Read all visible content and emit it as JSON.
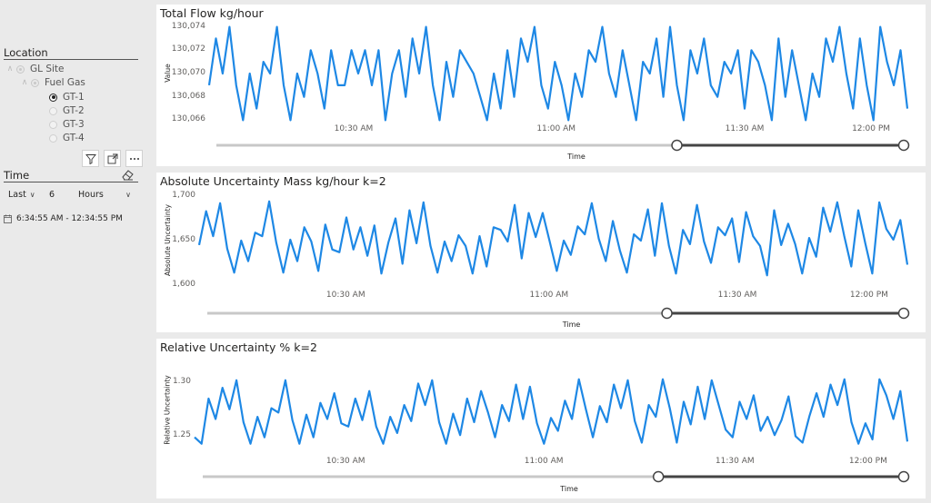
{
  "location_slicer": {
    "title": "Location",
    "items": [
      {
        "label": "GL Site",
        "state": "dim"
      },
      {
        "label": "Fuel Gas",
        "state": "dim"
      },
      {
        "label": "GT-1",
        "state": "checked"
      },
      {
        "label": "GT-2",
        "state": "empty"
      },
      {
        "label": "GT-3",
        "state": "empty"
      },
      {
        "label": "GT-4",
        "state": "empty"
      }
    ]
  },
  "time_slicer": {
    "title": "Time",
    "anchor": "Last",
    "amount": "6",
    "unit": "Hours",
    "range": "6:34:55 AM - 12:34:55 PM"
  },
  "icons": {
    "filter": "filter-icon",
    "focus": "focus-mode-icon",
    "more": "more-options-icon",
    "eraser": "eraser-icon",
    "calendar": "calendar-icon",
    "line_color": "#1e88e5"
  },
  "chart_data": [
    {
      "type": "line",
      "title": "Total Flow kg/hour",
      "ylabel": "Value",
      "xlabel": "Time",
      "yticks": [
        "130,074",
        "130,072",
        "130,070",
        "130,068",
        "130,066"
      ],
      "ylim": [
        130065.8,
        130074.2
      ],
      "xticks": [
        "10:30 AM",
        "11:00 AM",
        "11:30 AM",
        "12:00 PM"
      ],
      "y": [
        130069,
        130073,
        130070,
        130074,
        130069,
        130066,
        130070,
        130067,
        130071,
        130070,
        130074,
        130069,
        130066,
        130070,
        130068,
        130072,
        130070,
        130067,
        130072,
        130069,
        130069,
        130072,
        130070,
        130072,
        130069,
        130072,
        130066,
        130070,
        130072,
        130068,
        130073,
        130070,
        130074,
        130069,
        130066,
        130071,
        130068,
        130072,
        130071,
        130070,
        130068,
        130066,
        130070,
        130067,
        130072,
        130068,
        130073,
        130071,
        130074,
        130069,
        130067,
        130071,
        130069,
        130066,
        130070,
        130068,
        130072,
        130071,
        130074,
        130070,
        130068,
        130072,
        130069,
        130066,
        130071,
        130070,
        130073,
        130068,
        130074,
        130069,
        130066,
        130072,
        130070,
        130073,
        130069,
        130068,
        130071,
        130070,
        130072,
        130067,
        130072,
        130071,
        130069,
        130066,
        130073,
        130068,
        130072,
        130069,
        130066,
        130070,
        130068,
        130073,
        130071,
        130074,
        130070,
        130067,
        130073,
        130069,
        130066,
        130074,
        130071,
        130069,
        130072,
        130067
      ],
      "slider": {
        "start": 0.67,
        "end": 1.0
      }
    },
    {
      "type": "line",
      "title": "Absolute Uncertainty Mass kg/hour k=2",
      "ylabel": "Absolute Uncertainty",
      "xlabel": "Time",
      "yticks": [
        "1,700",
        "1,650",
        "1,600"
      ],
      "ylim": [
        1596,
        1704
      ],
      "xticks": [
        "10:30 AM",
        "11:00 AM",
        "11:30 AM",
        "12:00 PM"
      ],
      "y": [
        1645,
        1683,
        1655,
        1692,
        1641,
        1614,
        1650,
        1627,
        1659,
        1655,
        1694,
        1648,
        1614,
        1651,
        1627,
        1665,
        1649,
        1616,
        1668,
        1640,
        1637,
        1676,
        1640,
        1665,
        1633,
        1667,
        1613,
        1648,
        1675,
        1624,
        1684,
        1647,
        1693,
        1644,
        1614,
        1649,
        1627,
        1656,
        1644,
        1613,
        1655,
        1621,
        1665,
        1662,
        1649,
        1690,
        1630,
        1681,
        1654,
        1681,
        1649,
        1616,
        1650,
        1634,
        1666,
        1657,
        1692,
        1652,
        1627,
        1672,
        1639,
        1614,
        1657,
        1650,
        1685,
        1633,
        1692,
        1644,
        1613,
        1662,
        1646,
        1690,
        1649,
        1625,
        1665,
        1656,
        1675,
        1626,
        1682,
        1655,
        1644,
        1611,
        1684,
        1645,
        1669,
        1646,
        1613,
        1653,
        1632,
        1687,
        1660,
        1693,
        1655,
        1621,
        1684,
        1647,
        1613,
        1693,
        1663,
        1651,
        1673,
        1623
      ],
      "slider": {
        "start": 0.66,
        "end": 1.0
      }
    },
    {
      "type": "line",
      "title": "Relative Uncertainty % k=2",
      "ylabel": "Relative Uncertainty",
      "xlabel": "Time",
      "yticks": [
        "1.30",
        "1.25"
      ],
      "ylim": [
        1.236,
        1.312
      ],
      "xticks": [
        "10:30 AM",
        "11:00 AM",
        "11:30 AM",
        "12:00 PM"
      ],
      "y": [
        1.249,
        1.243,
        1.285,
        1.266,
        1.295,
        1.275,
        1.302,
        1.263,
        1.243,
        1.268,
        1.249,
        1.276,
        1.272,
        1.302,
        1.265,
        1.243,
        1.27,
        1.249,
        1.281,
        1.266,
        1.29,
        1.262,
        1.259,
        1.285,
        1.265,
        1.292,
        1.259,
        1.243,
        1.268,
        1.253,
        1.279,
        1.264,
        1.299,
        1.279,
        1.302,
        1.263,
        1.243,
        1.271,
        1.251,
        1.285,
        1.263,
        1.292,
        1.272,
        1.249,
        1.279,
        1.264,
        1.298,
        1.266,
        1.296,
        1.262,
        1.243,
        1.267,
        1.255,
        1.283,
        1.266,
        1.303,
        1.275,
        1.249,
        1.278,
        1.263,
        1.298,
        1.276,
        1.302,
        1.264,
        1.244,
        1.279,
        1.268,
        1.303,
        1.276,
        1.244,
        1.282,
        1.261,
        1.296,
        1.266,
        1.302,
        1.279,
        1.256,
        1.249,
        1.282,
        1.266,
        1.288,
        1.255,
        1.268,
        1.251,
        1.265,
        1.287,
        1.25,
        1.244,
        1.269,
        1.29,
        1.268,
        1.298,
        1.279,
        1.303,
        1.263,
        1.243,
        1.262,
        1.247,
        1.303,
        1.288,
        1.266,
        1.292,
        1.245
      ],
      "slider": {
        "start": 0.65,
        "end": 1.0
      }
    }
  ]
}
